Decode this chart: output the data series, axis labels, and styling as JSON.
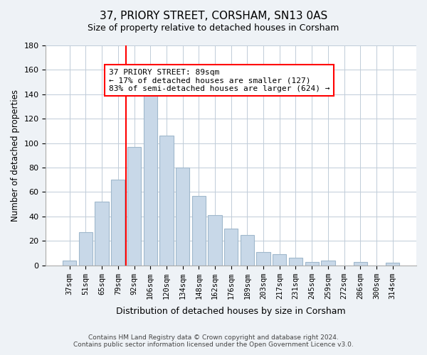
{
  "title": "37, PRIORY STREET, CORSHAM, SN13 0AS",
  "subtitle": "Size of property relative to detached houses in Corsham",
  "xlabel": "Distribution of detached houses by size in Corsham",
  "ylabel": "Number of detached properties",
  "bar_labels": [
    "37sqm",
    "51sqm",
    "65sqm",
    "79sqm",
    "92sqm",
    "106sqm",
    "120sqm",
    "134sqm",
    "148sqm",
    "162sqm",
    "176sqm",
    "189sqm",
    "203sqm",
    "217sqm",
    "231sqm",
    "245sqm",
    "259sqm",
    "272sqm",
    "286sqm",
    "300sqm",
    "314sqm"
  ],
  "bar_values": [
    4,
    27,
    52,
    70,
    97,
    140,
    106,
    80,
    57,
    41,
    30,
    25,
    11,
    9,
    6,
    3,
    4,
    0,
    3,
    0,
    2
  ],
  "bar_color": "#c8d8e8",
  "bar_edge_color": "#a0b8cc",
  "vline_x": 3.5,
  "vline_color": "red",
  "annotation_title": "37 PRIORY STREET: 89sqm",
  "annotation_line1": "← 17% of detached houses are smaller (127)",
  "annotation_line2": "83% of semi-detached houses are larger (624) →",
  "annotation_box_color": "white",
  "annotation_box_edge": "red",
  "ylim": [
    0,
    180
  ],
  "yticks": [
    0,
    20,
    40,
    60,
    80,
    100,
    120,
    140,
    160,
    180
  ],
  "footer_line1": "Contains HM Land Registry data © Crown copyright and database right 2024.",
  "footer_line2": "Contains public sector information licensed under the Open Government Licence v3.0.",
  "background_color": "#eef2f6",
  "plot_background_color": "#ffffff",
  "grid_color": "#c0ccd8"
}
